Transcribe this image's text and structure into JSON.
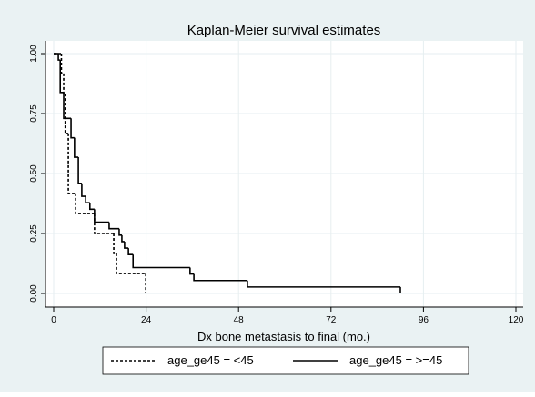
{
  "chart_data": {
    "type": "step",
    "title": "Kaplan-Meier survival estimates",
    "x_label": "Dx bone metastasis to final (mo.)",
    "xlim": [
      0,
      120
    ],
    "xticks": [
      0,
      24,
      48,
      72,
      96,
      120
    ],
    "ylim": [
      0,
      1
    ],
    "yticks": [
      {
        "value": 0,
        "label": "0.00"
      },
      {
        "value": 0.25,
        "label": "0.25"
      },
      {
        "value": 0.5,
        "label": "0.50"
      },
      {
        "value": 0.75,
        "label": "0.75"
      },
      {
        "value": 1,
        "label": "1.00"
      }
    ],
    "grid": true,
    "legend": "bottom",
    "series": [
      {
        "name": "age_ge45 = <45",
        "color": "#000000",
        "dash": "dashed",
        "x": [
          0,
          2,
          2.6,
          3,
          3.8,
          5.7,
          10.6,
          15.6,
          16.3,
          23.9
        ],
        "values": [
          1,
          0.917,
          0.833,
          0.667,
          0.417,
          0.333,
          0.25,
          0.167,
          0.083,
          0
        ]
      },
      {
        "name": "age_ge45 = >=45",
        "color": "#000000",
        "dash": "solid",
        "x": [
          0,
          1.2,
          1.7,
          2.6,
          4.5,
          5.4,
          6.4,
          7.3,
          8.3,
          9.4,
          10.6,
          14.4,
          17,
          17.7,
          18.4,
          19.4,
          20.6,
          35.4,
          36.4,
          50.3,
          90
        ],
        "values": [
          1,
          0.973,
          0.838,
          0.73,
          0.649,
          0.568,
          0.459,
          0.405,
          0.378,
          0.351,
          0.297,
          0.27,
          0.243,
          0.216,
          0.189,
          0.162,
          0.108,
          0.081,
          0.054,
          0.027,
          0
        ]
      }
    ]
  }
}
